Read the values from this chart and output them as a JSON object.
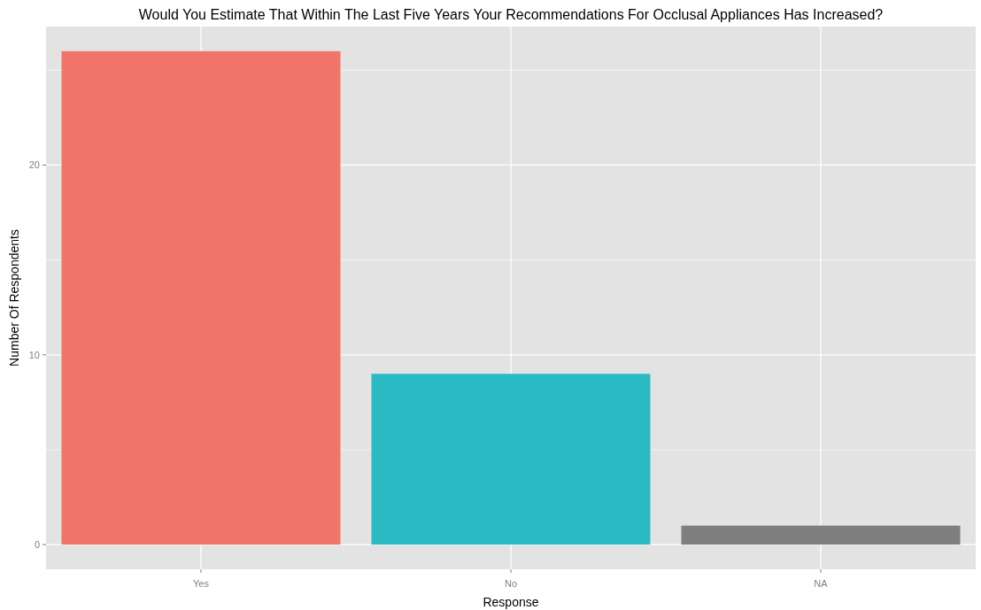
{
  "chart_data": {
    "type": "bar",
    "title": "Would You Estimate That Within The Last Five Years Your Recommendations For Occlusal Appliances Has Increased?",
    "xlabel": "Response",
    "ylabel": "Number Of Respondents",
    "categories": [
      "Yes",
      "No",
      "NA"
    ],
    "values": [
      26,
      9,
      1
    ],
    "colors": [
      "#f07568",
      "#2bbbc5",
      "#7f7f7f"
    ],
    "ylim": [
      -1.3,
      27.3
    ],
    "yticks": [
      0,
      {
        "value": 5,
        "label": null
      },
      10,
      {
        "value": 15,
        "label": null
      },
      20,
      {
        "value": 25,
        "label": null
      }
    ],
    "grid": true
  }
}
